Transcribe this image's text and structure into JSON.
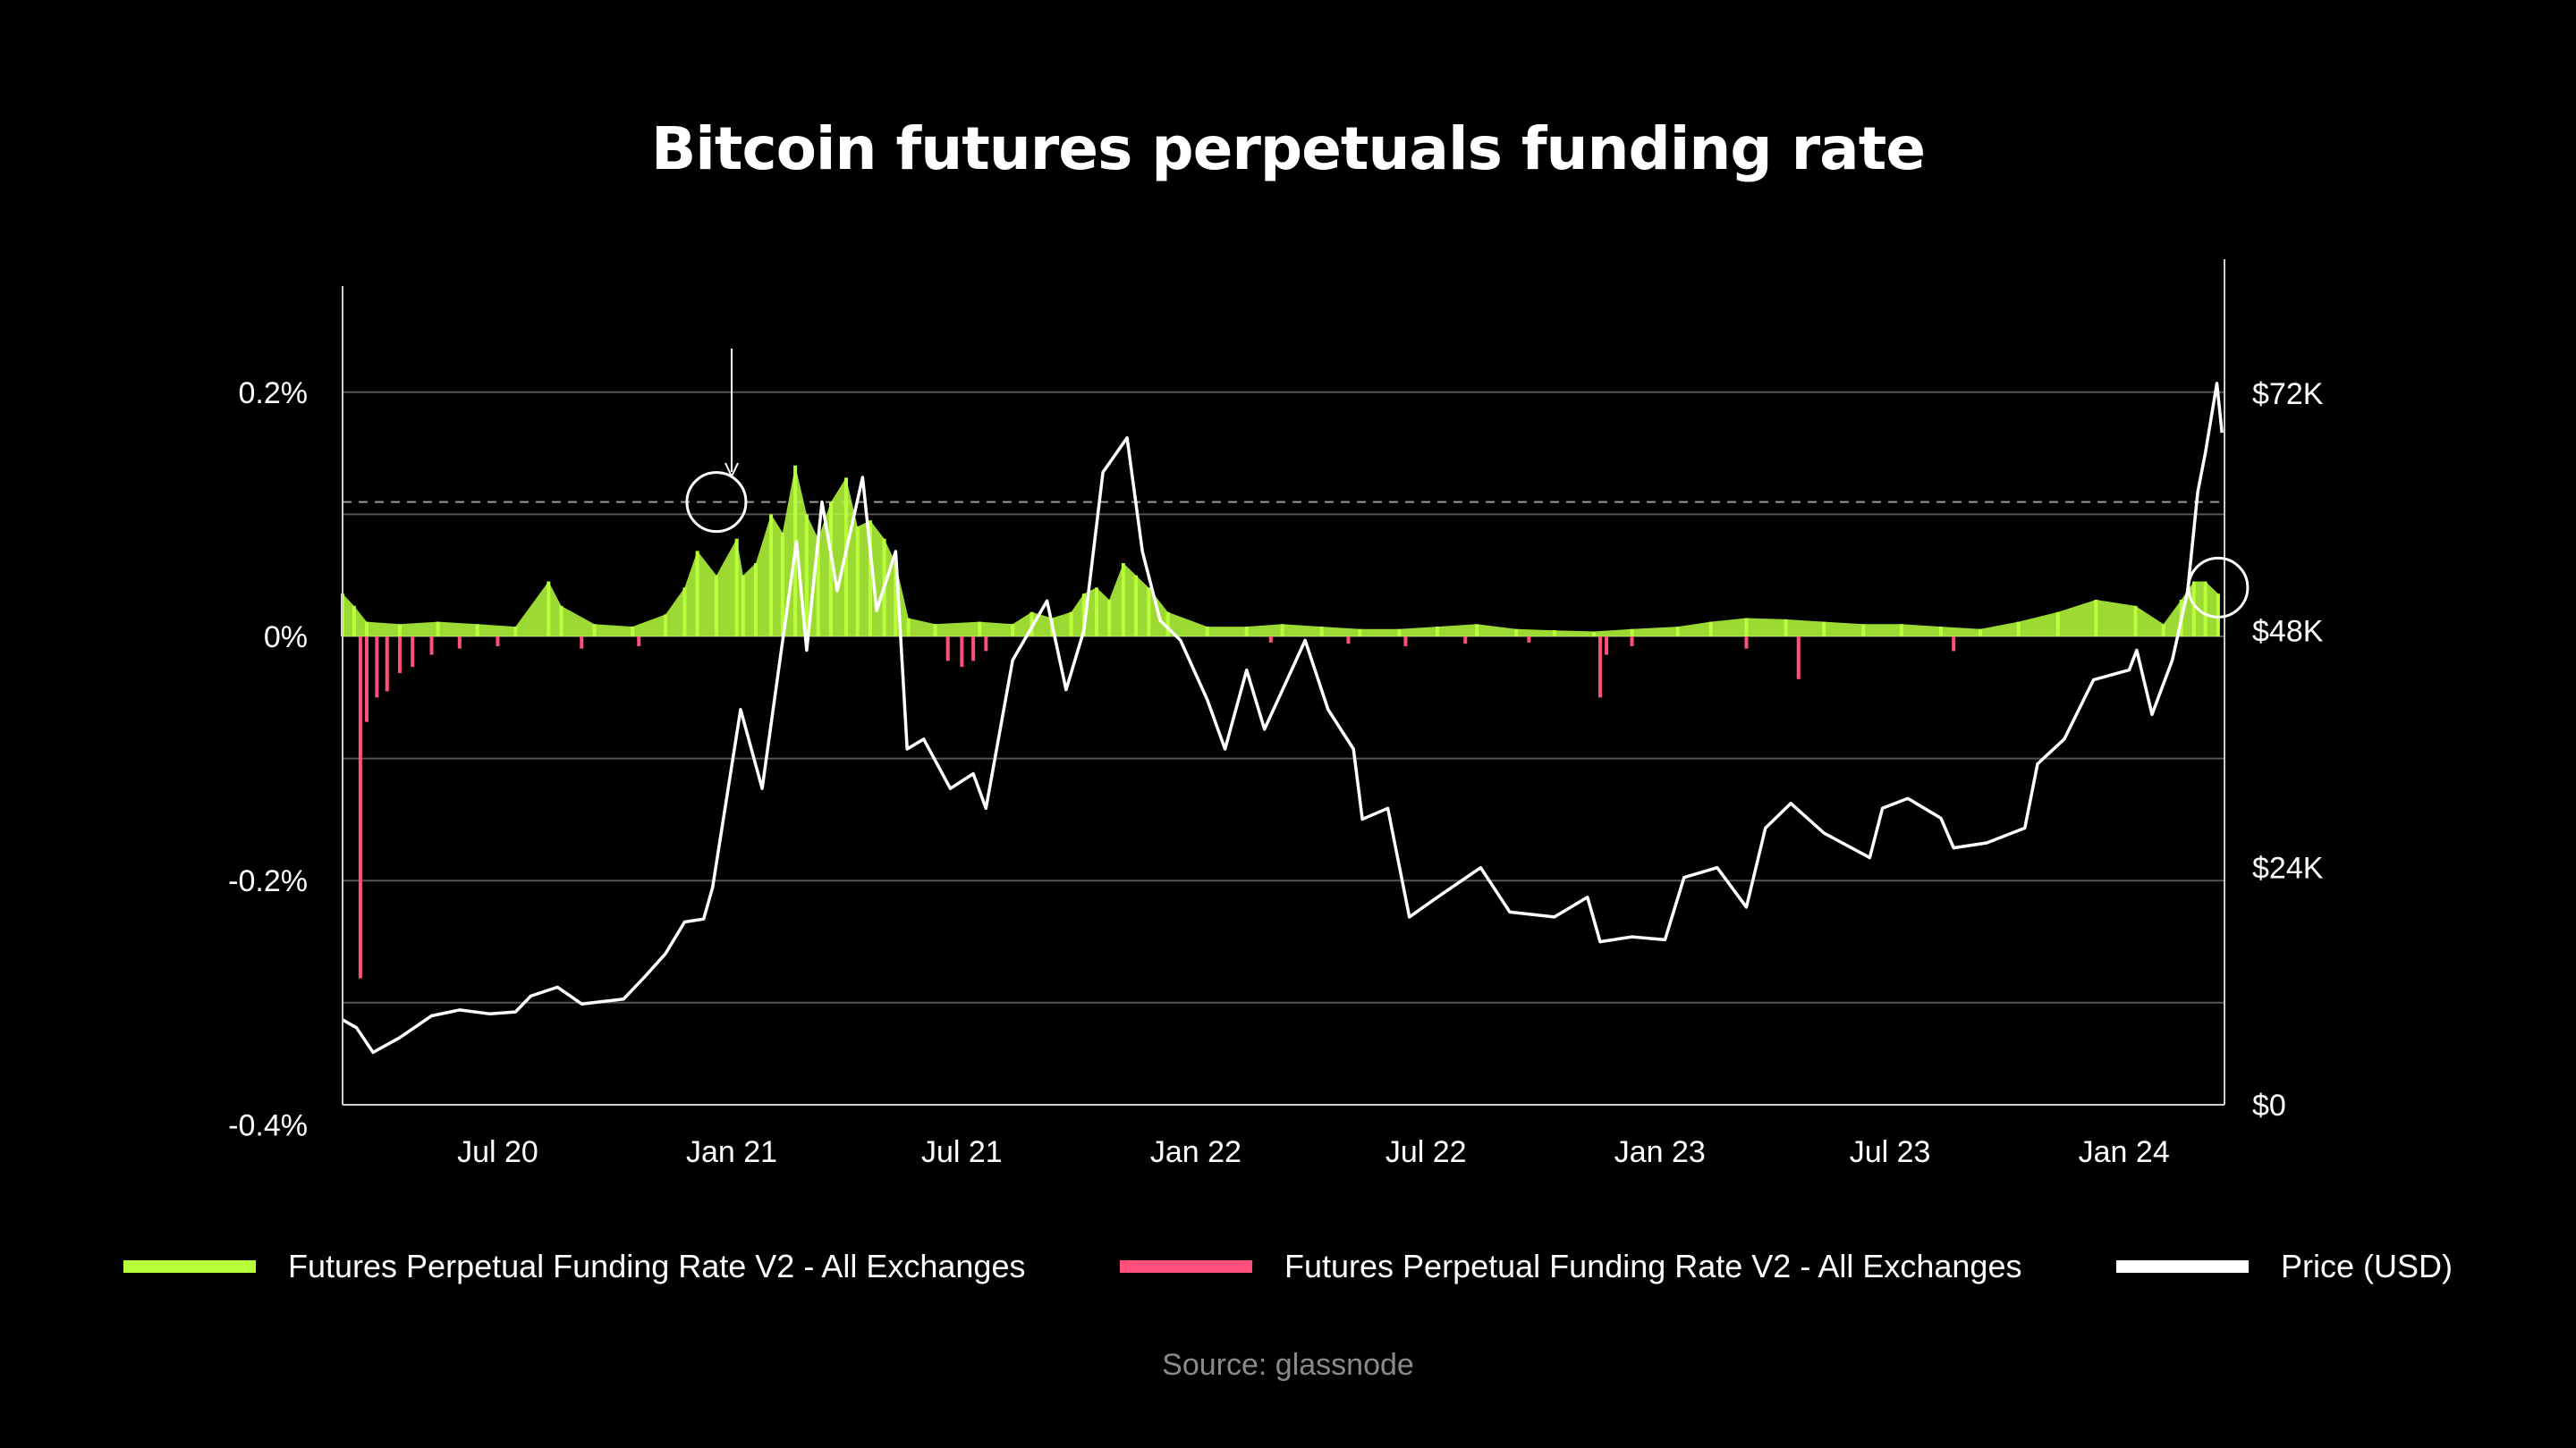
{
  "chart_data": {
    "type": "bar",
    "title": "Bitcoin futures perpetuals funding rate",
    "source": "Source: glassnode",
    "x_tick_labels": [
      "Jul 20",
      "Jan 21",
      "Jul 21",
      "Jan 22",
      "Jul 22",
      "Jan 23",
      "Jul 23",
      "Jan 24"
    ],
    "x_tick_dates": [
      "2020-07-01",
      "2021-01-01",
      "2021-07-01",
      "2022-01-01",
      "2022-07-01",
      "2023-01-01",
      "2023-07-01",
      "2024-01-01"
    ],
    "xlim": [
      "2020-03-01",
      "2024-03-20"
    ],
    "y_left": {
      "tick_labels": [
        "0.2%",
        "0%",
        "-0.2%",
        "-0.4%"
      ],
      "tick_values": [
        0.2,
        0,
        -0.2,
        -0.4
      ],
      "ylim": [
        -0.4,
        0.2
      ]
    },
    "y_right": {
      "tick_labels": [
        "$72K",
        "$48K",
        "$24K",
        "$0"
      ],
      "tick_values": [
        72000,
        48000,
        24000,
        0
      ],
      "ylim": [
        0,
        72000
      ]
    },
    "reference_line_right": 61000,
    "colors": {
      "positive": "#b8ff3c",
      "negative": "#ff4f7b",
      "price": "#ffffff",
      "grid": "#555555",
      "background": "#000000"
    },
    "series": [
      {
        "name": "Futures Perpetual Funding Rate V2 - All Exchanges",
        "axis": "left",
        "color": "#b8ff3c",
        "x": [
          "2020-03-01",
          "2020-03-10",
          "2020-03-20",
          "2020-04-15",
          "2020-05-15",
          "2020-06-15",
          "2020-07-15",
          "2020-08-10",
          "2020-08-20",
          "2020-09-15",
          "2020-10-15",
          "2020-11-10",
          "2020-11-25",
          "2020-12-05",
          "2020-12-20",
          "2021-01-05",
          "2021-01-10",
          "2021-01-20",
          "2021-02-01",
          "2021-02-10",
          "2021-02-20",
          "2021-03-01",
          "2021-03-10",
          "2021-03-20",
          "2021-04-01",
          "2021-04-10",
          "2021-04-20",
          "2021-05-01",
          "2021-05-10",
          "2021-05-20",
          "2021-06-10",
          "2021-07-15",
          "2021-08-10",
          "2021-08-25",
          "2021-09-10",
          "2021-09-25",
          "2021-10-05",
          "2021-10-15",
          "2021-10-25",
          "2021-11-05",
          "2021-11-15",
          "2021-11-25",
          "2021-12-10",
          "2022-01-10",
          "2022-02-10",
          "2022-03-10",
          "2022-04-10",
          "2022-05-10",
          "2022-06-10",
          "2022-07-10",
          "2022-08-10",
          "2022-09-10",
          "2022-10-10",
          "2022-11-10",
          "2022-12-10",
          "2023-01-15",
          "2023-02-10",
          "2023-03-10",
          "2023-04-10",
          "2023-05-10",
          "2023-06-10",
          "2023-07-10",
          "2023-08-10",
          "2023-09-10",
          "2023-10-10",
          "2023-11-10",
          "2023-12-10",
          "2024-01-10",
          "2024-02-01",
          "2024-02-15",
          "2024-02-25",
          "2024-03-05",
          "2024-03-15"
        ],
        "values": [
          0.035,
          0.025,
          0.012,
          0.01,
          0.012,
          0.01,
          0.008,
          0.045,
          0.025,
          0.01,
          0.008,
          0.018,
          0.04,
          0.07,
          0.05,
          0.08,
          0.05,
          0.06,
          0.1,
          0.085,
          0.14,
          0.1,
          0.08,
          0.11,
          0.13,
          0.09,
          0.095,
          0.08,
          0.06,
          0.015,
          0.01,
          0.012,
          0.01,
          0.02,
          0.015,
          0.02,
          0.035,
          0.04,
          0.03,
          0.06,
          0.05,
          0.04,
          0.02,
          0.008,
          0.008,
          0.01,
          0.008,
          0.006,
          0.006,
          0.008,
          0.01,
          0.006,
          0.005,
          0.004,
          0.006,
          0.008,
          0.012,
          0.015,
          0.014,
          0.012,
          0.01,
          0.01,
          0.008,
          0.006,
          0.012,
          0.02,
          0.03,
          0.025,
          0.01,
          0.03,
          0.045,
          0.045,
          0.035
        ]
      },
      {
        "name": "Futures Perpetual Funding Rate V2 - All Exchanges",
        "axis": "left",
        "color": "#ff4f7b",
        "x": [
          "2020-03-15",
          "2020-03-20",
          "2020-03-28",
          "2020-04-05",
          "2020-04-15",
          "2020-04-25",
          "2020-05-10",
          "2020-06-01",
          "2020-07-01",
          "2020-09-05",
          "2020-10-20",
          "2021-06-20",
          "2021-07-01",
          "2021-07-10",
          "2021-07-20",
          "2022-03-01",
          "2022-05-01",
          "2022-06-15",
          "2022-08-01",
          "2022-09-20",
          "2022-11-15",
          "2022-11-20",
          "2022-12-10",
          "2023-03-10",
          "2023-04-20",
          "2023-08-20"
        ],
        "values": [
          -0.28,
          -0.07,
          -0.05,
          -0.045,
          -0.03,
          -0.025,
          -0.015,
          -0.01,
          -0.008,
          -0.01,
          -0.008,
          -0.02,
          -0.025,
          -0.02,
          -0.012,
          -0.005,
          -0.006,
          -0.008,
          -0.006,
          -0.005,
          -0.05,
          -0.015,
          -0.008,
          -0.01,
          -0.035,
          -0.012
        ]
      },
      {
        "name": "Price (USD)",
        "axis": "right",
        "color": "#ffffff",
        "x": [
          "2020-03-01",
          "2020-03-12",
          "2020-03-25",
          "2020-04-15",
          "2020-05-10",
          "2020-06-01",
          "2020-06-25",
          "2020-07-15",
          "2020-07-27",
          "2020-08-17",
          "2020-09-05",
          "2020-10-08",
          "2020-10-25",
          "2020-11-10",
          "2020-11-25",
          "2020-12-10",
          "2020-12-17",
          "2021-01-08",
          "2021-01-25",
          "2021-02-08",
          "2021-02-21",
          "2021-03-01",
          "2021-03-13",
          "2021-03-25",
          "2021-04-14",
          "2021-04-25",
          "2021-05-10",
          "2021-05-19",
          "2021-06-01",
          "2021-06-22",
          "2021-07-10",
          "2021-07-20",
          "2021-08-10",
          "2021-09-06",
          "2021-09-21",
          "2021-10-05",
          "2021-10-20",
          "2021-11-08",
          "2021-11-20",
          "2021-12-04",
          "2021-12-20",
          "2022-01-10",
          "2022-01-24",
          "2022-02-10",
          "2022-02-24",
          "2022-03-28",
          "2022-04-15",
          "2022-05-05",
          "2022-05-12",
          "2022-06-01",
          "2022-06-18",
          "2022-07-10",
          "2022-08-13",
          "2022-09-05",
          "2022-10-10",
          "2022-11-05",
          "2022-11-15",
          "2022-12-10",
          "2023-01-05",
          "2023-01-20",
          "2023-02-15",
          "2023-03-10",
          "2023-03-25",
          "2023-04-14",
          "2023-05-10",
          "2023-06-15",
          "2023-06-25",
          "2023-07-15",
          "2023-08-10",
          "2023-08-20",
          "2023-09-15",
          "2023-10-15",
          "2023-10-25",
          "2023-11-15",
          "2023-12-08",
          "2024-01-05",
          "2024-01-11",
          "2024-01-23",
          "2024-02-08",
          "2024-02-20",
          "2024-02-28",
          "2024-03-05",
          "2024-03-14",
          "2024-03-18"
        ],
        "values": [
          8600,
          7800,
          5300,
          6800,
          9000,
          9600,
          9200,
          9400,
          11000,
          11900,
          10200,
          10700,
          13000,
          15300,
          18500,
          18800,
          22000,
          40000,
          32000,
          45000,
          57000,
          46000,
          61000,
          52000,
          63500,
          50000,
          56000,
          36000,
          37000,
          32000,
          33500,
          30000,
          45000,
          51000,
          42000,
          48000,
          64000,
          67500,
          56000,
          49000,
          47000,
          41000,
          36000,
          44000,
          38000,
          47000,
          40000,
          36000,
          28900,
          30000,
          19000,
          21000,
          24000,
          19500,
          19000,
          21000,
          16500,
          17000,
          16700,
          23000,
          24000,
          20000,
          28000,
          30500,
          27500,
          25000,
          30000,
          31000,
          29000,
          26000,
          26500,
          28000,
          34500,
          37000,
          43000,
          44000,
          46000,
          39500,
          45000,
          52000,
          62000,
          66000,
          73000,
          68000
        ]
      }
    ],
    "annotations": [
      {
        "type": "arrow-marker",
        "date": "2021-01-01",
        "value_right": 61000
      },
      {
        "type": "circle-marker",
        "date": "2020-12-20",
        "value_right": 61000
      },
      {
        "type": "circle-marker",
        "date": "2024-03-15",
        "value_left": 0.04
      }
    ],
    "legend_position": "bottom"
  }
}
